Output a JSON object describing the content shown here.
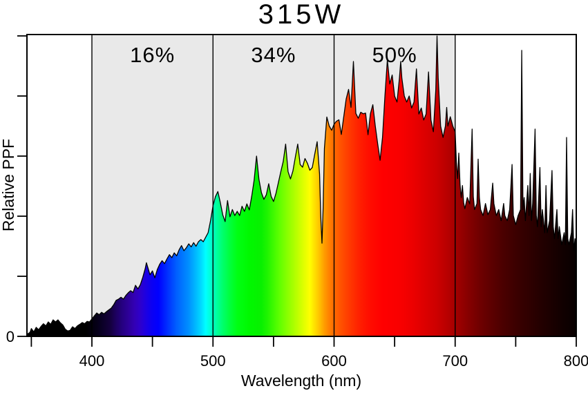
{
  "title": "315W",
  "axes": {
    "x_label": "Wavelength (nm)",
    "y_label": "Relative PPF",
    "x_range": [
      346,
      800
    ],
    "y_range": [
      0,
      1
    ],
    "x_ticks": [
      {
        "value": 350,
        "label": ""
      },
      {
        "value": 400,
        "label": "400"
      },
      {
        "value": 450,
        "label": ""
      },
      {
        "value": 500,
        "label": "500"
      },
      {
        "value": 550,
        "label": ""
      },
      {
        "value": 600,
        "label": "600"
      },
      {
        "value": 650,
        "label": ""
      },
      {
        "value": 700,
        "label": "700"
      },
      {
        "value": 750,
        "label": ""
      },
      {
        "value": 800,
        "label": "800"
      }
    ],
    "y_ticks": [
      {
        "value": 0.0,
        "label": "0"
      },
      {
        "value": 0.2,
        "label": ""
      },
      {
        "value": 0.4,
        "label": ""
      },
      {
        "value": 0.6,
        "label": ""
      },
      {
        "value": 0.8,
        "label": ""
      },
      {
        "value": 1.0,
        "label": ""
      }
    ]
  },
  "bands": [
    {
      "range": [
        400,
        500
      ],
      "label": "16%"
    },
    {
      "range": [
        500,
        600
      ],
      "label": "34%"
    },
    {
      "range": [
        600,
        700
      ],
      "label": "50%"
    }
  ],
  "colors": {
    "background": "#ffffff",
    "band_fill": "#e9e9e9",
    "line": "#000000",
    "text": "#000000"
  },
  "chart_data": {
    "type": "area",
    "title": "315W",
    "xlabel": "Wavelength (nm)",
    "ylabel": "Relative PPF",
    "xlim": [
      346,
      800
    ],
    "ylim": [
      0,
      1
    ],
    "grid": false,
    "legend": false,
    "band_percentages": {
      "400-500nm": 16,
      "500-600nm": 34,
      "600-700nm": 50
    },
    "points": [
      [
        347,
        0.008
      ],
      [
        349,
        0.014
      ],
      [
        350,
        0.026
      ],
      [
        352,
        0.015
      ],
      [
        354,
        0.03
      ],
      [
        356,
        0.022
      ],
      [
        358,
        0.033
      ],
      [
        360,
        0.042
      ],
      [
        362,
        0.035
      ],
      [
        364,
        0.048
      ],
      [
        366,
        0.04
      ],
      [
        368,
        0.055
      ],
      [
        370,
        0.048
      ],
      [
        372,
        0.055
      ],
      [
        374,
        0.045
      ],
      [
        376,
        0.038
      ],
      [
        378,
        0.024
      ],
      [
        380,
        0.018
      ],
      [
        382,
        0.02
      ],
      [
        384,
        0.032
      ],
      [
        386,
        0.026
      ],
      [
        388,
        0.035
      ],
      [
        390,
        0.04
      ],
      [
        392,
        0.046
      ],
      [
        394,
        0.042
      ],
      [
        396,
        0.05
      ],
      [
        398,
        0.048
      ],
      [
        400,
        0.058
      ],
      [
        402,
        0.068
      ],
      [
        404,
        0.078
      ],
      [
        406,
        0.072
      ],
      [
        408,
        0.08
      ],
      [
        410,
        0.075
      ],
      [
        412,
        0.082
      ],
      [
        414,
        0.088
      ],
      [
        416,
        0.094
      ],
      [
        418,
        0.105
      ],
      [
        420,
        0.12
      ],
      [
        422,
        0.124
      ],
      [
        424,
        0.13
      ],
      [
        426,
        0.124
      ],
      [
        428,
        0.136
      ],
      [
        430,
        0.145
      ],
      [
        432,
        0.152
      ],
      [
        434,
        0.146
      ],
      [
        436,
        0.17
      ],
      [
        438,
        0.158
      ],
      [
        440,
        0.172
      ],
      [
        442,
        0.196
      ],
      [
        444,
        0.225
      ],
      [
        445,
        0.245
      ],
      [
        446,
        0.232
      ],
      [
        448,
        0.205
      ],
      [
        450,
        0.218
      ],
      [
        452,
        0.195
      ],
      [
        454,
        0.222
      ],
      [
        456,
        0.24
      ],
      [
        458,
        0.252
      ],
      [
        460,
        0.242
      ],
      [
        462,
        0.258
      ],
      [
        464,
        0.272
      ],
      [
        466,
        0.262
      ],
      [
        468,
        0.278
      ],
      [
        470,
        0.268
      ],
      [
        472,
        0.288
      ],
      [
        474,
        0.302
      ],
      [
        476,
        0.285
      ],
      [
        478,
        0.295
      ],
      [
        480,
        0.308
      ],
      [
        482,
        0.298
      ],
      [
        484,
        0.312
      ],
      [
        486,
        0.3
      ],
      [
        488,
        0.315
      ],
      [
        490,
        0.322
      ],
      [
        492,
        0.315
      ],
      [
        494,
        0.33
      ],
      [
        496,
        0.345
      ],
      [
        498,
        0.385
      ],
      [
        500,
        0.435
      ],
      [
        502,
        0.465
      ],
      [
        504,
        0.482
      ],
      [
        506,
        0.446
      ],
      [
        508,
        0.405
      ],
      [
        510,
        0.382
      ],
      [
        512,
        0.452
      ],
      [
        514,
        0.398
      ],
      [
        516,
        0.422
      ],
      [
        518,
        0.402
      ],
      [
        520,
        0.416
      ],
      [
        522,
        0.402
      ],
      [
        524,
        0.433
      ],
      [
        526,
        0.416
      ],
      [
        528,
        0.441
      ],
      [
        530,
        0.421
      ],
      [
        532,
        0.466
      ],
      [
        534,
        0.52
      ],
      [
        536,
        0.6
      ],
      [
        538,
        0.522
      ],
      [
        540,
        0.478
      ],
      [
        542,
        0.456
      ],
      [
        544,
        0.471
      ],
      [
        546,
        0.508
      ],
      [
        548,
        0.466
      ],
      [
        550,
        0.449
      ],
      [
        552,
        0.476
      ],
      [
        554,
        0.512
      ],
      [
        556,
        0.548
      ],
      [
        558,
        0.582
      ],
      [
        560,
        0.64
      ],
      [
        562,
        0.548
      ],
      [
        564,
        0.524
      ],
      [
        566,
        0.55
      ],
      [
        568,
        0.596
      ],
      [
        570,
        0.64
      ],
      [
        572,
        0.572
      ],
      [
        574,
        0.563
      ],
      [
        576,
        0.592
      ],
      [
        578,
        0.576
      ],
      [
        580,
        0.553
      ],
      [
        582,
        0.562
      ],
      [
        584,
        0.606
      ],
      [
        586,
        0.648
      ],
      [
        588,
        0.54
      ],
      [
        589,
        0.4
      ],
      [
        590,
        0.31
      ],
      [
        591,
        0.43
      ],
      [
        592,
        0.625
      ],
      [
        594,
        0.73
      ],
      [
        596,
        0.7
      ],
      [
        598,
        0.686
      ],
      [
        600,
        0.706
      ],
      [
        602,
        0.716
      ],
      [
        604,
        0.721
      ],
      [
        606,
        0.672
      ],
      [
        608,
        0.731
      ],
      [
        610,
        0.79
      ],
      [
        612,
        0.822
      ],
      [
        614,
        0.762
      ],
      [
        616,
        0.915
      ],
      [
        618,
        0.742
      ],
      [
        620,
        0.726
      ],
      [
        622,
        0.746
      ],
      [
        624,
        0.741
      ],
      [
        626,
        0.743
      ],
      [
        628,
        0.671
      ],
      [
        630,
        0.741
      ],
      [
        632,
        0.771
      ],
      [
        634,
        0.701
      ],
      [
        636,
        0.641
      ],
      [
        638,
        0.586
      ],
      [
        640,
        0.662
      ],
      [
        642,
        0.8
      ],
      [
        644,
        0.92
      ],
      [
        646,
        0.84
      ],
      [
        648,
        0.87
      ],
      [
        650,
        0.8
      ],
      [
        652,
        0.78
      ],
      [
        654,
        0.86
      ],
      [
        655,
        0.915
      ],
      [
        656,
        0.86
      ],
      [
        658,
        0.8
      ],
      [
        660,
        0.78
      ],
      [
        662,
        0.8
      ],
      [
        664,
        0.76
      ],
      [
        666,
        0.78
      ],
      [
        668,
        0.89
      ],
      [
        670,
        0.74
      ],
      [
        672,
        0.76
      ],
      [
        674,
        0.72
      ],
      [
        676,
        0.74
      ],
      [
        678,
        0.88
      ],
      [
        680,
        0.72
      ],
      [
        682,
        0.681
      ],
      [
        684,
        0.82
      ],
      [
        685,
        1.0
      ],
      [
        686,
        0.86
      ],
      [
        688,
        0.7
      ],
      [
        690,
        0.662
      ],
      [
        692,
        0.701
      ],
      [
        693,
        0.762
      ],
      [
        694,
        0.7
      ],
      [
        696,
        0.731
      ],
      [
        698,
        0.701
      ],
      [
        700,
        0.68
      ],
      [
        701,
        0.58
      ],
      [
        702,
        0.525
      ],
      [
        703,
        0.61
      ],
      [
        704,
        0.505
      ],
      [
        705,
        0.462
      ],
      [
        706,
        0.502
      ],
      [
        707,
        0.445
      ],
      [
        708,
        0.425
      ],
      [
        710,
        0.462
      ],
      [
        712,
        0.441
      ],
      [
        714,
        0.69
      ],
      [
        715,
        0.465
      ],
      [
        716,
        0.422
      ],
      [
        718,
        0.442
      ],
      [
        719,
        0.59
      ],
      [
        720,
        0.462
      ],
      [
        721,
        0.422
      ],
      [
        723,
        0.402
      ],
      [
        725,
        0.442
      ],
      [
        727,
        0.405
      ],
      [
        729,
        0.422
      ],
      [
        731,
        0.51
      ],
      [
        732,
        0.442
      ],
      [
        734,
        0.402
      ],
      [
        736,
        0.422
      ],
      [
        738,
        0.385
      ],
      [
        740,
        0.442
      ],
      [
        741,
        0.402
      ],
      [
        743,
        0.385
      ],
      [
        745,
        0.422
      ],
      [
        747,
        0.572
      ],
      [
        748,
        0.402
      ],
      [
        750,
        0.372
      ],
      [
        752,
        0.402
      ],
      [
        754,
        0.422
      ],
      [
        755,
        0.952
      ],
      [
        756,
        0.422
      ],
      [
        757,
        0.462
      ],
      [
        758,
        0.385
      ],
      [
        760,
        0.502
      ],
      [
        761,
        0.402
      ],
      [
        762,
        0.542
      ],
      [
        763,
        0.385
      ],
      [
        764,
        0.442
      ],
      [
        766,
        0.69
      ],
      [
        767,
        0.402
      ],
      [
        768,
        0.365
      ],
      [
        770,
        0.562
      ],
      [
        771,
        0.365
      ],
      [
        772,
        0.422
      ],
      [
        774,
        0.345
      ],
      [
        775,
        0.502
      ],
      [
        776,
        0.345
      ],
      [
        778,
        0.385
      ],
      [
        780,
        0.552
      ],
      [
        781,
        0.365
      ],
      [
        782,
        0.325
      ],
      [
        784,
        0.422
      ],
      [
        785,
        0.325
      ],
      [
        786,
        0.365
      ],
      [
        788,
        0.305
      ],
      [
        790,
        0.345
      ],
      [
        791,
        0.305
      ],
      [
        792,
        0.662
      ],
      [
        793,
        0.325
      ],
      [
        794,
        0.305
      ],
      [
        796,
        0.345
      ],
      [
        797,
        0.422
      ],
      [
        798,
        0.285
      ],
      [
        799,
        0.325
      ],
      [
        800,
        0.262
      ]
    ],
    "spectrum_gradient": [
      [
        347,
        "#000000"
      ],
      [
        395,
        "#000000"
      ],
      [
        405,
        "#06001a"
      ],
      [
        415,
        "#14003c"
      ],
      [
        420,
        "#1d0060"
      ],
      [
        425,
        "#250080"
      ],
      [
        430,
        "#2d0098"
      ],
      [
        435,
        "#3300b4"
      ],
      [
        440,
        "#2e00cc"
      ],
      [
        445,
        "#1b00e4"
      ],
      [
        450,
        "#0a00f4"
      ],
      [
        455,
        "#0000ff"
      ],
      [
        460,
        "#0020ff"
      ],
      [
        465,
        "#0040ff"
      ],
      [
        470,
        "#0060ff"
      ],
      [
        475,
        "#0078ff"
      ],
      [
        480,
        "#0090ff"
      ],
      [
        485,
        "#00b4ff"
      ],
      [
        490,
        "#00d8ff"
      ],
      [
        494,
        "#00ffff"
      ],
      [
        498,
        "#00ffd4"
      ],
      [
        503,
        "#00ffa0"
      ],
      [
        508,
        "#00ff6c"
      ],
      [
        514,
        "#00ff3c"
      ],
      [
        520,
        "#00ff14"
      ],
      [
        530,
        "#00f800"
      ],
      [
        540,
        "#08f000"
      ],
      [
        545,
        "#20f400"
      ],
      [
        550,
        "#40fa00"
      ],
      [
        555,
        "#60ff00"
      ],
      [
        560,
        "#80ff00"
      ],
      [
        565,
        "#a0ff00"
      ],
      [
        570,
        "#c0ff00"
      ],
      [
        575,
        "#e0ff00"
      ],
      [
        580,
        "#ffff00"
      ],
      [
        584,
        "#ffe000"
      ],
      [
        588,
        "#ffc000"
      ],
      [
        592,
        "#ff9c00"
      ],
      [
        596,
        "#ff8000"
      ],
      [
        600,
        "#ff6a00"
      ],
      [
        605,
        "#ff5400"
      ],
      [
        610,
        "#ff4200"
      ],
      [
        615,
        "#ff3200"
      ],
      [
        620,
        "#ff2200"
      ],
      [
        625,
        "#ff1600"
      ],
      [
        630,
        "#ff0c00"
      ],
      [
        640,
        "#ff0000"
      ],
      [
        655,
        "#f80000"
      ],
      [
        665,
        "#ec0000"
      ],
      [
        675,
        "#dc0000"
      ],
      [
        685,
        "#cc0000"
      ],
      [
        695,
        "#b40000"
      ],
      [
        700,
        "#a40000"
      ],
      [
        710,
        "#880000"
      ],
      [
        720,
        "#700000"
      ],
      [
        730,
        "#5c0000"
      ],
      [
        740,
        "#4a0000"
      ],
      [
        750,
        "#3c0000"
      ],
      [
        760,
        "#300000"
      ],
      [
        770,
        "#240000"
      ],
      [
        780,
        "#1a0000"
      ],
      [
        790,
        "#100000"
      ],
      [
        800,
        "#080000"
      ]
    ]
  }
}
